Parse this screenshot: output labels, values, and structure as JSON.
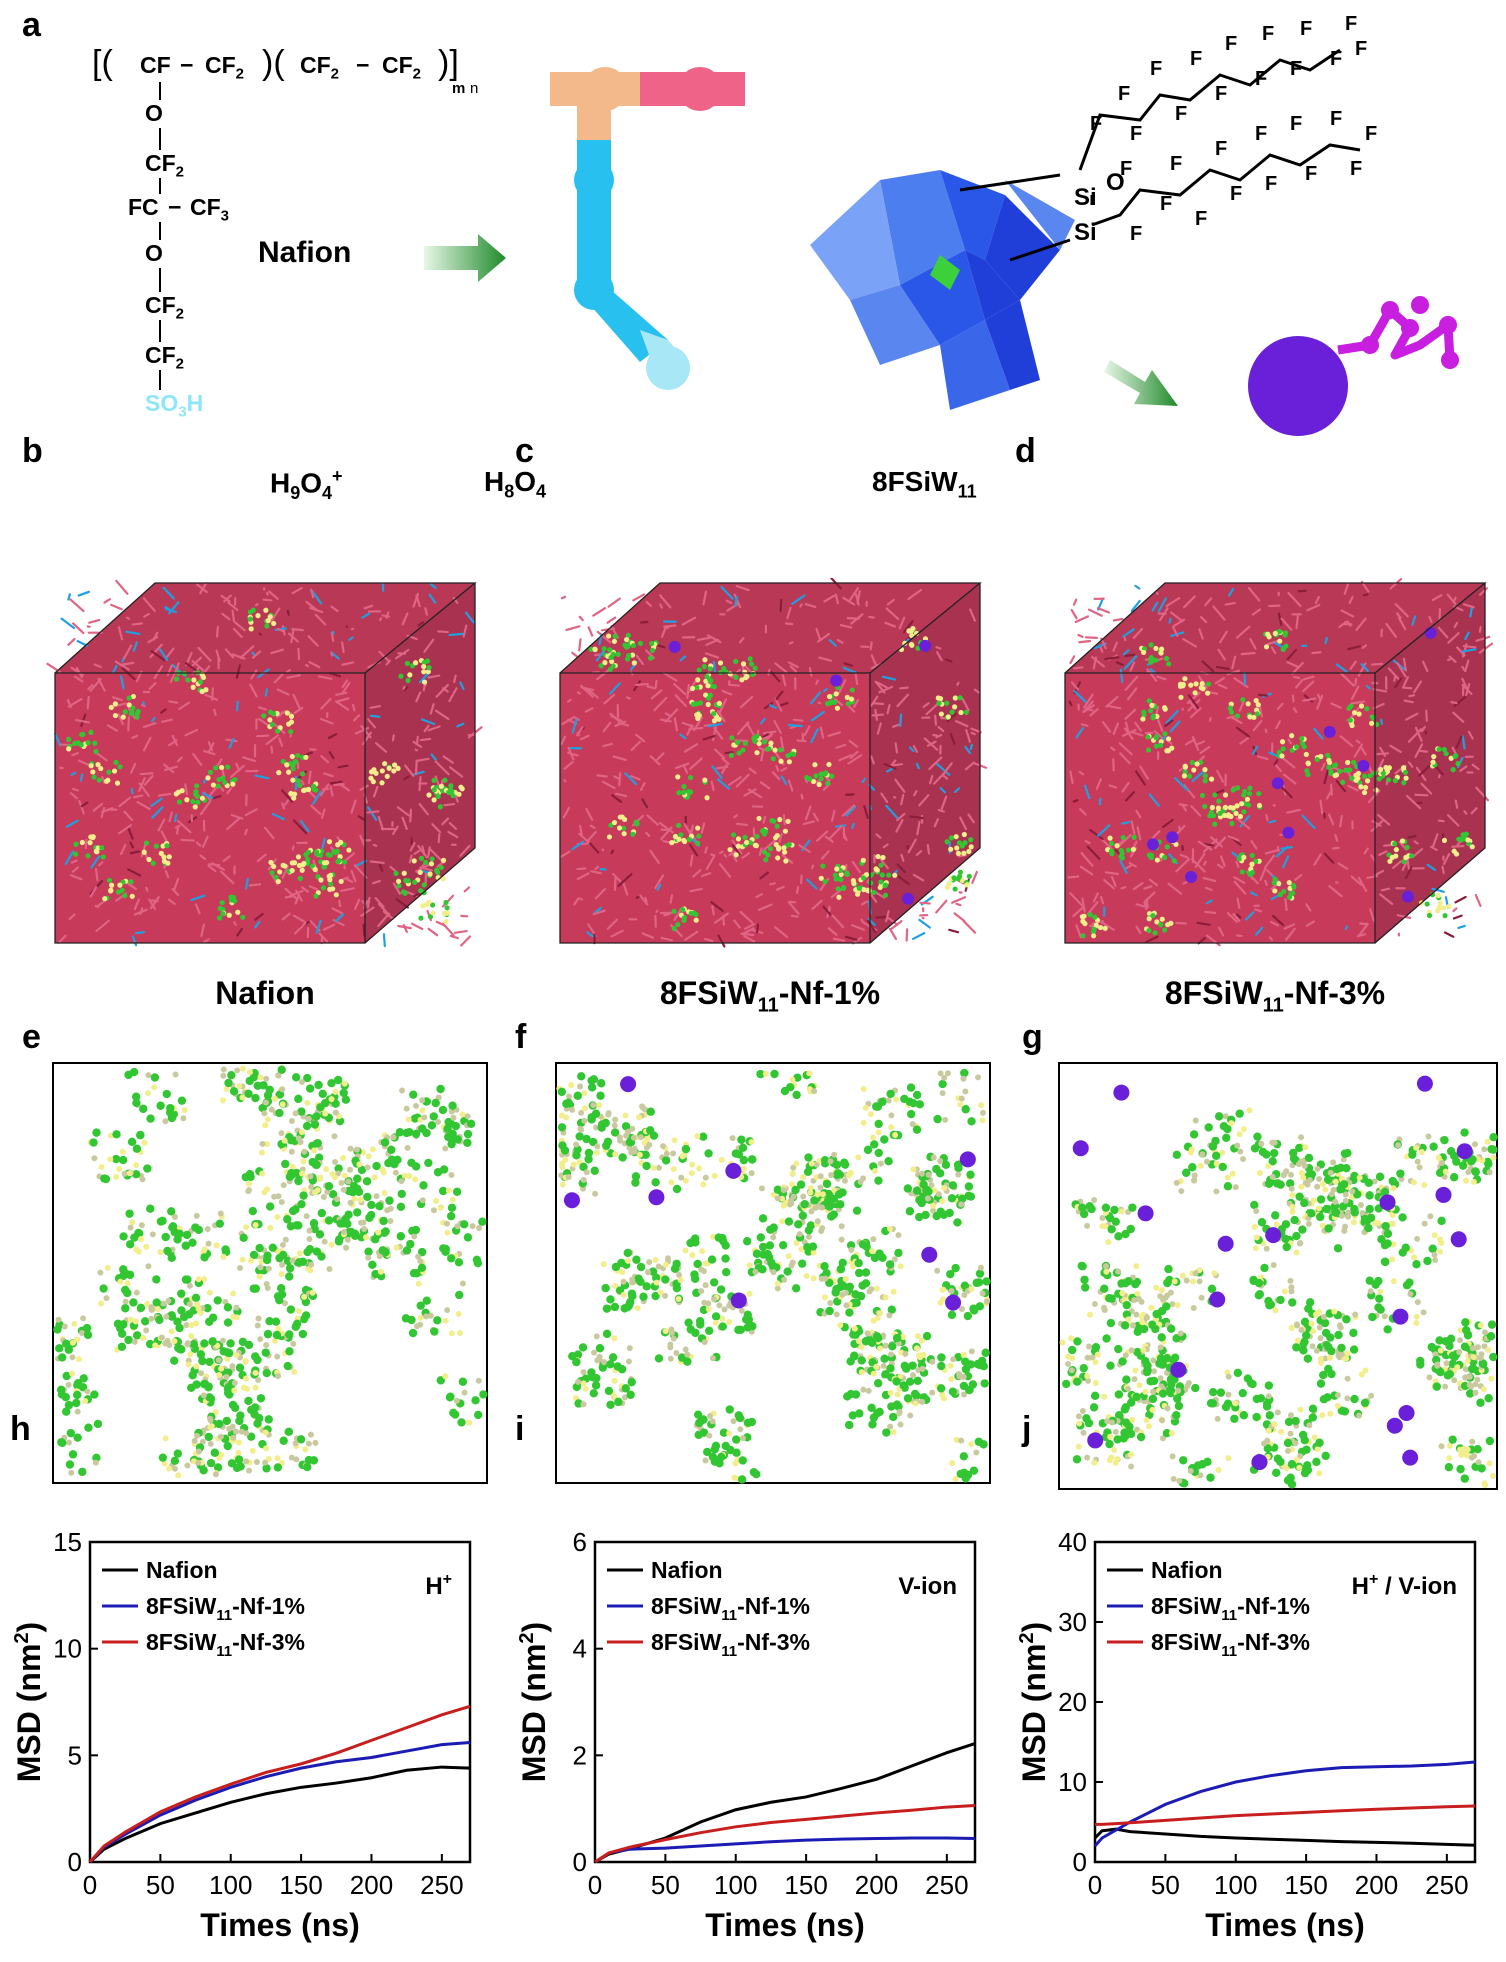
{
  "panel_labels": [
    "a",
    "b",
    "c",
    "d",
    "e",
    "f",
    "g",
    "h",
    "i",
    "j"
  ],
  "scheme": {
    "nafion_label": "Nafion",
    "polymer_backbone": [
      "CF",
      "CF",
      "2",
      "CF",
      "2",
      "CF",
      "2",
      "m",
      "n"
    ],
    "side_chain": [
      "O",
      "CF",
      "2",
      "FC",
      "CF",
      "3",
      "O",
      "CF",
      "2",
      "CF",
      "2",
      "SO",
      "3",
      "H"
    ],
    "legend": [
      {
        "label": "H",
        "sub": "9",
        "mid": "O",
        "sub2": "4",
        "sup": "+",
        "color": "#f0ee70"
      },
      {
        "label": "H",
        "sub": "8",
        "mid": "O",
        "sub2": "4",
        "sup": "",
        "color": "#2fb82f"
      }
    ],
    "molecule_label": {
      "main": "8FSiW",
      "sub": "11"
    },
    "molecule_atoms": [
      "Si",
      "O",
      "Si",
      "F"
    ]
  },
  "cube_captions": [
    {
      "main": "Nafion",
      "sub": "",
      "tail": ""
    },
    {
      "main": "8FSiW",
      "sub": "11",
      "tail": "-Nf-1%"
    },
    {
      "main": "8FSiW",
      "sub": "11",
      "tail": "-Nf-3%"
    }
  ],
  "colors": {
    "nafion": "#000000",
    "nf1": "#1c1cb4",
    "nf3": "#c81e1e",
    "backbone": "#c73a5a",
    "sidechain": "#1fa0e0",
    "water_green": "#33c633",
    "hydronium_yellow": "#f2ee8c",
    "poly_blue": "#2a4fdc",
    "cluster_purple": "#6a1fd8"
  },
  "chart_data": [
    {
      "type": "line",
      "title": "",
      "annotation": "H",
      "annotation_sup": "+",
      "xlabel": "Times (ns)",
      "ylabel": "MSD (nm",
      "ylabel_sup": "2",
      "ylabel_tail": ")",
      "xlim": [
        0,
        270
      ],
      "ylim": [
        0,
        15
      ],
      "xticks": [
        0,
        50,
        100,
        150,
        200,
        250
      ],
      "yticks": [
        0,
        5,
        10,
        15
      ],
      "legend_position": "top-left",
      "series": [
        {
          "name": "Nafion",
          "name_sub": "",
          "name_tail": "",
          "color": "#000000",
          "x": [
            0,
            10,
            25,
            50,
            75,
            100,
            125,
            150,
            175,
            200,
            225,
            250,
            270
          ],
          "y": [
            0,
            0.6,
            1.1,
            1.8,
            2.3,
            2.8,
            3.2,
            3.5,
            3.7,
            3.95,
            4.3,
            4.45,
            4.4
          ]
        },
        {
          "name": "8FSiW",
          "name_sub": "11",
          "name_tail": "-Nf-1%",
          "color": "#1c1cb4",
          "x": [
            0,
            10,
            25,
            50,
            75,
            100,
            125,
            150,
            175,
            200,
            225,
            250,
            270
          ],
          "y": [
            0,
            0.7,
            1.3,
            2.2,
            2.9,
            3.5,
            4.0,
            4.4,
            4.7,
            4.9,
            5.2,
            5.5,
            5.6
          ]
        },
        {
          "name": "8FSiW",
          "name_sub": "11",
          "name_tail": "-Nf-3%",
          "color": "#c81e1e",
          "x": [
            0,
            10,
            25,
            50,
            75,
            100,
            125,
            150,
            175,
            200,
            225,
            250,
            270
          ],
          "y": [
            0,
            0.75,
            1.4,
            2.35,
            3.05,
            3.65,
            4.2,
            4.6,
            5.1,
            5.7,
            6.3,
            6.9,
            7.3
          ]
        }
      ]
    },
    {
      "type": "line",
      "title": "",
      "annotation": "V-ion",
      "annotation_sup": "",
      "xlabel": "Times (ns)",
      "ylabel": "MSD (nm",
      "ylabel_sup": "2",
      "ylabel_tail": ")",
      "xlim": [
        0,
        270
      ],
      "ylim": [
        0,
        6
      ],
      "xticks": [
        0,
        50,
        100,
        150,
        200,
        250
      ],
      "yticks": [
        0,
        2,
        4,
        6
      ],
      "legend_position": "top-left",
      "series": [
        {
          "name": "Nafion",
          "name_sub": "",
          "name_tail": "",
          "color": "#000000",
          "x": [
            0,
            10,
            25,
            50,
            75,
            100,
            125,
            150,
            175,
            200,
            225,
            250,
            270
          ],
          "y": [
            0,
            0.15,
            0.25,
            0.45,
            0.75,
            0.98,
            1.12,
            1.22,
            1.38,
            1.55,
            1.8,
            2.05,
            2.22
          ]
        },
        {
          "name": "8FSiW",
          "name_sub": "11",
          "name_tail": "-Nf-1%",
          "color": "#1c1cb4",
          "x": [
            0,
            10,
            25,
            50,
            75,
            100,
            125,
            150,
            175,
            200,
            225,
            250,
            270
          ],
          "y": [
            0,
            0.17,
            0.24,
            0.26,
            0.3,
            0.34,
            0.38,
            0.41,
            0.43,
            0.44,
            0.45,
            0.45,
            0.44
          ]
        },
        {
          "name": "8FSiW",
          "name_sub": "11",
          "name_tail": "-Nf-3%",
          "color": "#c81e1e",
          "x": [
            0,
            10,
            25,
            50,
            75,
            100,
            125,
            150,
            175,
            200,
            225,
            250,
            270
          ],
          "y": [
            0,
            0.17,
            0.28,
            0.42,
            0.55,
            0.66,
            0.74,
            0.8,
            0.86,
            0.92,
            0.97,
            1.03,
            1.06
          ]
        }
      ]
    },
    {
      "type": "line",
      "title": "",
      "annotation": "H",
      "annotation_sup": "+",
      "annotation_tail": " / V-ion",
      "xlabel": "Times (ns)",
      "ylabel": "MSD (nm",
      "ylabel_sup": "2",
      "ylabel_tail": ")",
      "xlim": [
        0,
        270
      ],
      "ylim": [
        0,
        40
      ],
      "xticks": [
        0,
        50,
        100,
        150,
        200,
        250
      ],
      "yticks": [
        0,
        10,
        20,
        30,
        40
      ],
      "legend_position": "top-left",
      "series": [
        {
          "name": "Nafion",
          "name_sub": "",
          "name_tail": "",
          "color": "#000000",
          "x": [
            0,
            5,
            15,
            25,
            50,
            75,
            100,
            125,
            150,
            175,
            200,
            225,
            250,
            270
          ],
          "y": [
            3.0,
            3.9,
            4.1,
            3.8,
            3.5,
            3.2,
            3.0,
            2.85,
            2.7,
            2.55,
            2.45,
            2.35,
            2.2,
            2.1
          ]
        },
        {
          "name": "8FSiW",
          "name_sub": "11",
          "name_tail": "-Nf-1%",
          "color": "#1c1cb4",
          "x": [
            0,
            5,
            15,
            25,
            50,
            75,
            100,
            125,
            150,
            175,
            200,
            225,
            250,
            270
          ],
          "y": [
            2.0,
            3.0,
            4.0,
            5.0,
            7.2,
            8.8,
            10.0,
            10.8,
            11.4,
            11.8,
            11.9,
            12.0,
            12.2,
            12.5
          ]
        },
        {
          "name": "8FSiW",
          "name_sub": "11",
          "name_tail": "-Nf-3%",
          "color": "#c81e1e",
          "x": [
            0,
            5,
            15,
            25,
            50,
            75,
            100,
            125,
            150,
            175,
            200,
            225,
            250,
            270
          ],
          "y": [
            4.7,
            4.7,
            4.8,
            4.9,
            5.2,
            5.5,
            5.8,
            6.0,
            6.2,
            6.4,
            6.6,
            6.75,
            6.9,
            7.0
          ]
        }
      ]
    }
  ]
}
